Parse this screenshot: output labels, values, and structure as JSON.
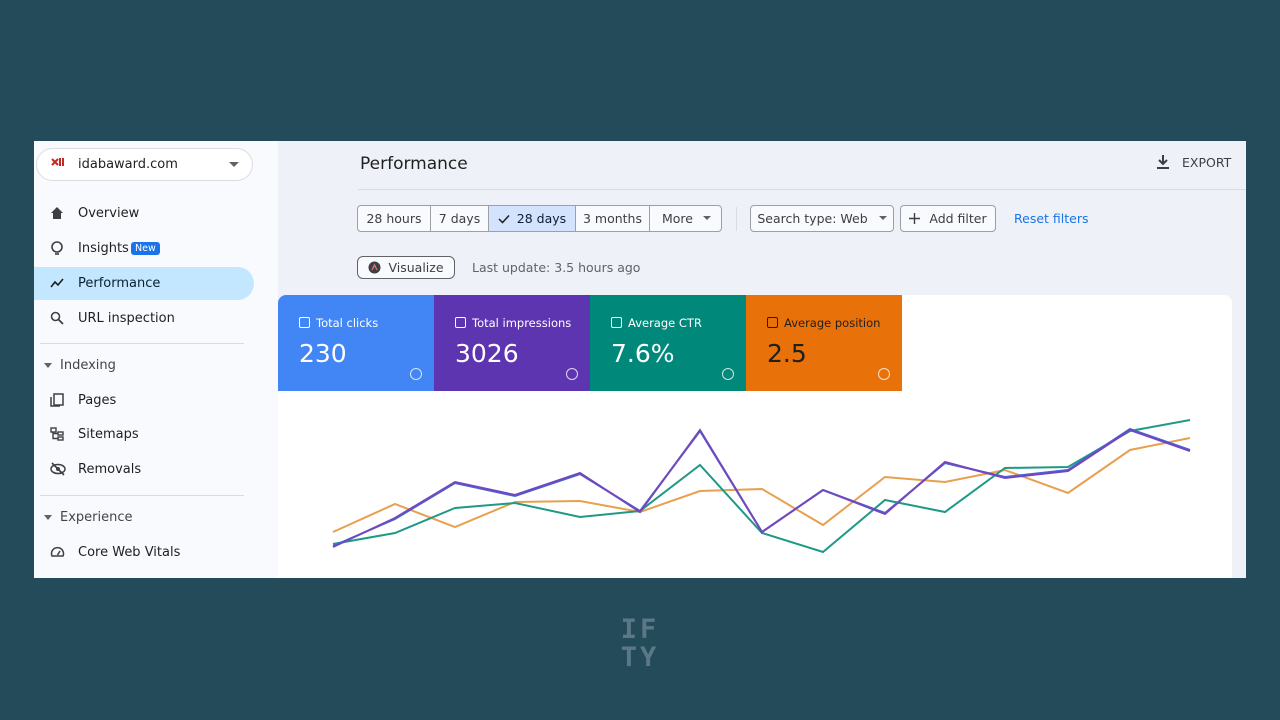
{
  "sidebar": {
    "site": "idabaward.com",
    "nav": [
      "Overview",
      "Insights",
      "Performance",
      "URL inspection"
    ],
    "badge": "New",
    "sections": [
      {
        "title": "Indexing",
        "items": [
          "Pages",
          "Sitemaps",
          "Removals"
        ]
      },
      {
        "title": "Experience",
        "items": [
          "Core Web Vitals"
        ]
      }
    ]
  },
  "header": {
    "title": "Performance",
    "export": "EXPORT"
  },
  "filters": {
    "ranges": [
      "28 hours",
      "7 days",
      "28 days",
      "3 months",
      "More"
    ],
    "search_type": "Search type: Web",
    "add_filter": "Add filter",
    "reset": "Reset filters"
  },
  "visualize": "Visualize",
  "last_update": "Last update: 3.5 hours ago",
  "metrics": [
    {
      "label": "Total clicks",
      "value": "230"
    },
    {
      "label": "Total impressions",
      "value": "3026"
    },
    {
      "label": "Average CTR",
      "value": "7.6%"
    },
    {
      "label": "Average position",
      "value": "2.5"
    }
  ],
  "watermark": [
    "IF",
    "TY"
  ]
}
